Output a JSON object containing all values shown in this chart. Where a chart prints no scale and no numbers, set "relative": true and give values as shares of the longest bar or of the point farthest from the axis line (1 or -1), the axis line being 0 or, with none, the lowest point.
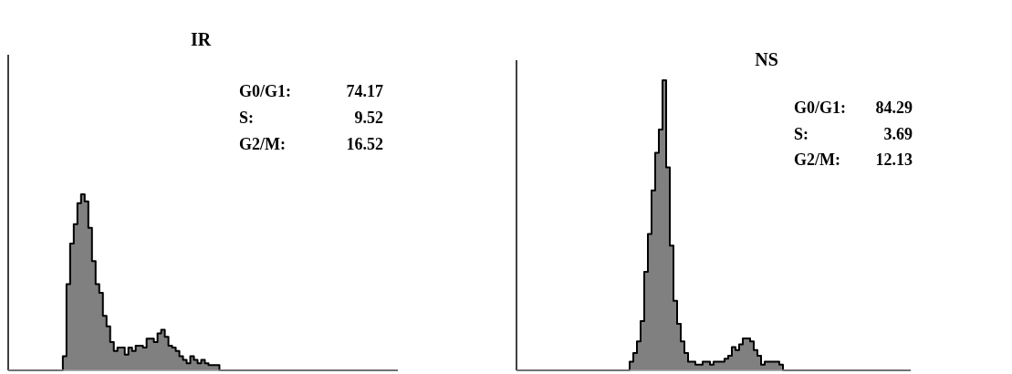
{
  "chart_data": [
    {
      "type": "area",
      "title": "IR",
      "relative": true,
      "color": "#808080",
      "categories": [
        null,
        null,
        null,
        null,
        null,
        null,
        null,
        null,
        null,
        null,
        null,
        null,
        null,
        null,
        null,
        null,
        null,
        null,
        null,
        null,
        null,
        null,
        null,
        null,
        null,
        null,
        null,
        null,
        null,
        null,
        null,
        null,
        null,
        null,
        null,
        null,
        null,
        null,
        null,
        null,
        null,
        null,
        null,
        null,
        null,
        null,
        null,
        null,
        null,
        null,
        null,
        null,
        null,
        null,
        null,
        null,
        null,
        null,
        null,
        null,
        null,
        null,
        null,
        null,
        null,
        null,
        null,
        null,
        null,
        null,
        null,
        null,
        null,
        null,
        null,
        null,
        null,
        null,
        null,
        null,
        null,
        null,
        null,
        null,
        null,
        null,
        null,
        null,
        null,
        null,
        null,
        null,
        null,
        null,
        null,
        null,
        null,
        null,
        null,
        null,
        null,
        null,
        null,
        null,
        null,
        null,
        null,
        null
      ],
      "values": [
        0,
        0,
        0,
        0,
        0,
        0,
        0,
        0,
        0,
        0,
        0,
        0,
        0,
        0,
        0,
        0.08,
        0.49,
        0.72,
        0.83,
        0.95,
        1,
        0.96,
        0.81,
        0.62,
        0.49,
        0.44,
        0.31,
        0.25,
        0.16,
        0.11,
        0.13,
        0.13,
        0.09,
        0.13,
        0.11,
        0.14,
        0.14,
        0.13,
        0.18,
        0.18,
        0.16,
        0.21,
        0.23,
        0.19,
        0.14,
        0.13,
        0.11,
        0.08,
        0.06,
        0.04,
        0.08,
        0.06,
        0.04,
        0.06,
        0.04,
        0.03,
        0.03,
        0.03,
        0,
        0,
        0,
        0,
        0,
        0,
        0,
        0,
        0,
        0,
        0,
        0,
        0,
        0,
        0,
        0,
        0,
        0,
        0,
        0,
        0,
        0,
        0,
        0,
        0,
        0,
        0,
        0,
        0,
        0,
        0,
        0,
        0,
        0,
        0,
        0,
        0,
        0,
        0,
        0,
        0,
        0,
        0,
        0,
        0,
        0,
        0,
        0,
        0,
        0
      ],
      "annotations": [
        "G0/G1:",
        "74.17",
        "S:",
        "9.52",
        "G2/M:",
        "16.52"
      ]
    },
    {
      "type": "area",
      "title": "NS",
      "relative": true,
      "color": "#808080",
      "categories": [
        null,
        null,
        null,
        null,
        null,
        null,
        null,
        null,
        null,
        null,
        null,
        null,
        null,
        null,
        null,
        null,
        null,
        null,
        null,
        null,
        null,
        null,
        null,
        null,
        null,
        null,
        null,
        null,
        null,
        null,
        null,
        null,
        null,
        null,
        null,
        null,
        null,
        null,
        null,
        null,
        null,
        null,
        null,
        null,
        null,
        null,
        null,
        null,
        null,
        null,
        null,
        null,
        null,
        null,
        null,
        null,
        null,
        null,
        null,
        null,
        null,
        null,
        null,
        null,
        null,
        null,
        null,
        null,
        null,
        null,
        null,
        null,
        null,
        null,
        null,
        null,
        null,
        null,
        null,
        null,
        null,
        null,
        null,
        null,
        null,
        null,
        null,
        null,
        null,
        null,
        null,
        null,
        null,
        null,
        null,
        null,
        null,
        null,
        null,
        null,
        null,
        null,
        null,
        null,
        null,
        null,
        null,
        null,
        null
      ],
      "values": [
        0,
        0,
        0,
        0,
        0,
        0,
        0,
        0,
        0,
        0,
        0,
        0,
        0,
        0,
        0,
        0,
        0,
        0,
        0,
        0,
        0,
        0,
        0,
        0,
        0,
        0,
        0,
        0,
        0,
        0,
        0,
        0.03,
        0.06,
        0.1,
        0.17,
        0.34,
        0.47,
        0.62,
        0.75,
        0.83,
        1,
        0.7,
        0.43,
        0.24,
        0.16,
        0.1,
        0.06,
        0.03,
        0.03,
        0.02,
        0.02,
        0.03,
        0.03,
        0.02,
        0.03,
        0.03,
        0.03,
        0.04,
        0.05,
        0.08,
        0.07,
        0.09,
        0.11,
        0.11,
        0.1,
        0.07,
        0.05,
        0.02,
        0.03,
        0.03,
        0.03,
        0.03,
        0.02,
        0,
        0,
        0,
        0,
        0,
        0,
        0,
        0,
        0,
        0,
        0,
        0,
        0,
        0,
        0,
        0,
        0,
        0,
        0,
        0,
        0,
        0,
        0,
        0,
        0,
        0,
        0,
        0,
        0,
        0,
        0,
        0,
        0,
        0,
        0,
        0
      ],
      "annotations": [
        "G0/G1:",
        "84.29",
        "S:",
        "3.69",
        "G2/M:",
        "12.13"
      ]
    }
  ]
}
